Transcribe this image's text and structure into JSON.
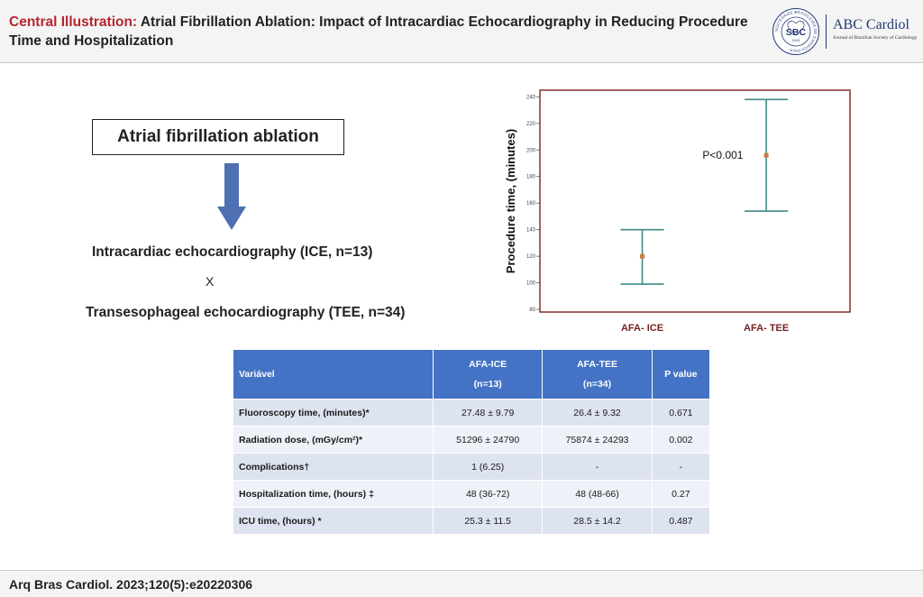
{
  "header": {
    "label": "Central Illustration:",
    "title": "Atrial Fibrillation Ablation: Impact of Intracardiac Echocardiography in Reducing Procedure Time and Hospitalization"
  },
  "logo": {
    "seal_text": "SBC",
    "seal_year": "1943",
    "seal_ring": "SOCIEDADE BRASILEIRA DE CARDIOLOGIA",
    "journal": "ABC Cardiol",
    "journal_sub": "Journal of Brazilian Society of Cardiology"
  },
  "diagram": {
    "box_label": "Atrial fibrillation ablation",
    "ice_line": "Intracardiac echocardiography  (ICE, n=13)",
    "versus": "X",
    "tee_line": "Transesophageal echocardiography  (TEE, n=34)",
    "arrow_color": "#4f6fb3"
  },
  "chart_data": {
    "type": "scatter",
    "ylabel": "Procedure time, (minutes)",
    "xlabel": "",
    "categories": [
      "AFA- ICE",
      "AFA- TEE"
    ],
    "ylim": [
      78,
      245
    ],
    "yticks": [
      80,
      100,
      120,
      140,
      160,
      180,
      200,
      220,
      240
    ],
    "series": [
      {
        "points": [
          {
            "category": "AFA- ICE",
            "mean": 120,
            "low": 99,
            "high": 140
          },
          {
            "category": "AFA- TEE",
            "mean": 196,
            "low": 154,
            "high": 238
          }
        ]
      }
    ],
    "annotation": "P<0.001",
    "colors": {
      "errorbar": "#3f8a86",
      "marker": "#d0783f",
      "frame": "#7a2020",
      "category_label": "#7a2020"
    }
  },
  "table": {
    "headers": {
      "var": "Variável",
      "ice": [
        "AFA-ICE",
        "(n=13)"
      ],
      "tee": [
        "AFA-TEE",
        "(n=34)"
      ],
      "p": "P value"
    },
    "rows": [
      {
        "var": "Fluoroscopy time, (minutes)*",
        "ice": "27.48 ± 9.79",
        "tee": "26.4 ± 9.32",
        "p": "0.671"
      },
      {
        "var": "Radiation dose, (mGy/cm²)*",
        "ice": "51296 ± 24790",
        "tee": "75874 ± 24293",
        "p": "0.002"
      },
      {
        "var": "Complications†",
        "ice": "1 (6.25)",
        "tee": "-",
        "p": "-"
      },
      {
        "var": "Hospitalization time, (hours) ‡",
        "ice": "48 (36-72)",
        "tee": "48 (48-66)",
        "p": "0.27"
      },
      {
        "var": "ICU time, (hours) *",
        "ice": "25.3 ± 11.5",
        "tee": "28.5 ± 14.2",
        "p": "0.487"
      }
    ]
  },
  "footer": {
    "citation": "Arq Bras Cardiol. 2023;120(5):e20220306"
  }
}
